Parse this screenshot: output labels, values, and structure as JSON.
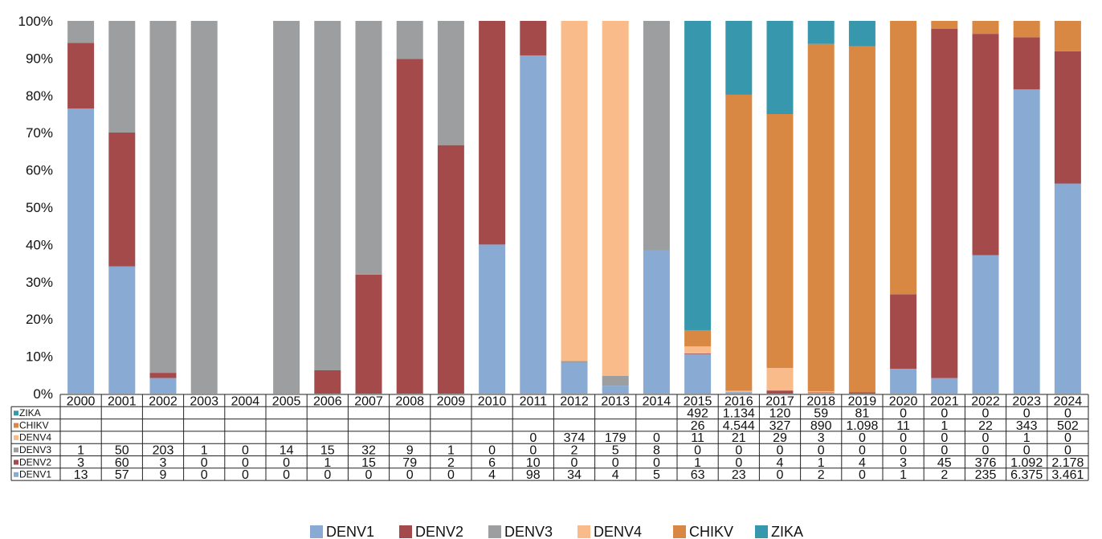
{
  "chart_data": {
    "type": "bar",
    "stacking": "percent",
    "categories": [
      "2000",
      "2001",
      "2002",
      "2003",
      "2004",
      "2005",
      "2006",
      "2007",
      "2008",
      "2009",
      "2010",
      "2011",
      "2012",
      "2013",
      "2014",
      "2015",
      "2016",
      "2017",
      "2018",
      "2019",
      "2020",
      "2021",
      "2022",
      "2023",
      "2024"
    ],
    "y_ticks": [
      "0%",
      "10%",
      "20%",
      "30%",
      "40%",
      "50%",
      "60%",
      "70%",
      "80%",
      "90%",
      "100%"
    ],
    "ylim": [
      0,
      100
    ],
    "grid": false,
    "legend_position": "bottom",
    "series": [
      {
        "name": "DENV1",
        "color": "#88aad3",
        "values": [
          13,
          57,
          9,
          0,
          0,
          0,
          0,
          0,
          0,
          0,
          4,
          98,
          34,
          4,
          5,
          63,
          23,
          0,
          2,
          0,
          1,
          2,
          235,
          6375,
          3461
        ],
        "labels": [
          "13",
          "57",
          "9",
          "0",
          "0",
          "0",
          "0",
          "0",
          "0",
          "0",
          "4",
          "98",
          "34",
          "4",
          "5",
          "63",
          "23",
          "0",
          "2",
          "0",
          "1",
          "2",
          "235",
          "6.375",
          "3.461"
        ]
      },
      {
        "name": "DENV2",
        "color": "#a44a4b",
        "values": [
          3,
          60,
          3,
          0,
          0,
          0,
          1,
          15,
          79,
          2,
          6,
          10,
          0,
          0,
          0,
          1,
          0,
          4,
          1,
          4,
          3,
          45,
          376,
          1092,
          2178
        ],
        "labels": [
          "3",
          "60",
          "3",
          "0",
          "0",
          "0",
          "1",
          "15",
          "79",
          "2",
          "6",
          "10",
          "0",
          "0",
          "0",
          "1",
          "0",
          "4",
          "1",
          "4",
          "3",
          "45",
          "376",
          "1.092",
          "2.178"
        ]
      },
      {
        "name": "DENV3",
        "color": "#9c9e9f",
        "values": [
          1,
          50,
          203,
          1,
          0,
          14,
          15,
          32,
          9,
          1,
          0,
          0,
          2,
          5,
          8,
          0,
          0,
          0,
          0,
          0,
          0,
          0,
          0,
          0,
          0
        ],
        "labels": [
          "1",
          "50",
          "203",
          "1",
          "0",
          "14",
          "15",
          "32",
          "9",
          "1",
          "0",
          "0",
          "2",
          "5",
          "8",
          "0",
          "0",
          "0",
          "0",
          "0",
          "0",
          "0",
          "0",
          "0",
          "0"
        ]
      },
      {
        "name": "DENV4",
        "color": "#f9bb8a",
        "values": [
          null,
          null,
          null,
          null,
          null,
          null,
          null,
          null,
          null,
          null,
          null,
          0,
          374,
          179,
          0,
          11,
          21,
          29,
          3,
          0,
          0,
          0,
          0,
          1,
          0
        ],
        "labels": [
          "",
          "",
          "",
          "",
          "",
          "",
          "",
          "",
          "",
          "",
          "",
          "0",
          "374",
          "179",
          "0",
          "11",
          "21",
          "29",
          "3",
          "0",
          "0",
          "0",
          "0",
          "1",
          "0"
        ]
      },
      {
        "name": "CHIKV",
        "color": "#d98844",
        "values": [
          null,
          null,
          null,
          null,
          null,
          null,
          null,
          null,
          null,
          null,
          null,
          null,
          null,
          null,
          null,
          26,
          4544,
          327,
          890,
          1098,
          11,
          1,
          22,
          343,
          502
        ],
        "labels": [
          "",
          "",
          "",
          "",
          "",
          "",
          "",
          "",
          "",
          "",
          "",
          "",
          "",
          "",
          "",
          "26",
          "4.544",
          "327",
          "890",
          "1.098",
          "11",
          "1",
          "22",
          "343",
          "502"
        ]
      },
      {
        "name": "ZIKA",
        "color": "#3797ac",
        "values": [
          null,
          null,
          null,
          null,
          null,
          null,
          null,
          null,
          null,
          null,
          null,
          null,
          null,
          null,
          null,
          492,
          1134,
          120,
          59,
          81,
          0,
          0,
          0,
          0,
          0
        ],
        "labels": [
          "",
          "",
          "",
          "",
          "",
          "",
          "",
          "",
          "",
          "",
          "",
          "",
          "",
          "",
          "",
          "492",
          "1.134",
          "120",
          "59",
          "81",
          "0",
          "0",
          "0",
          "0",
          "0"
        ]
      }
    ]
  }
}
